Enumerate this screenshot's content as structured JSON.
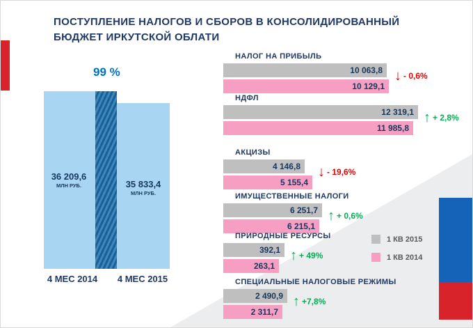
{
  "title": {
    "line1": "ПОСТУПЛЕНИЕ НАЛОГОВ И СБОРОВ В КОНСОЛИДИРОВАННЫЙ",
    "line2": "БЮДЖЕТ ИРКУТСКОЙ ОБЛАТИ"
  },
  "chart_data": [
    {
      "type": "bar",
      "annotation": "99 %",
      "categories": [
        "4 МЕС 2014",
        "4 МЕС 2015"
      ],
      "values": [
        36209.6,
        35833.4
      ],
      "value_labels": [
        "36 209,6",
        "35 833,4"
      ],
      "unit_label": "МЛН РУБ.",
      "bar_color": "#A8D6F2",
      "divider_color": "#2272A8"
    },
    {
      "type": "bar",
      "orientation": "horizontal",
      "categories": [
        "НАЛОГ НА ПРИБЫЛЬ",
        "НДФЛ",
        "АКЦИЗЫ",
        "ИМУЩЕСТВЕННЫЕ НАЛОГИ",
        "ПРИРОДНЫЕ РЕСУРСЫ",
        "СПЕЦИАЛЬНЫЕ НАЛОГОВЫЕ РЕЖИМЫ"
      ],
      "series": [
        {
          "name": "1 КВ 2015",
          "color": "#BFBFBF",
          "values": [
            10063.8,
            12319.1,
            4146.8,
            6251.7,
            392.1,
            2490.9
          ],
          "value_labels": [
            "10 063,8",
            "12 319,1",
            "4 146,8",
            "6 251,7",
            "392,1",
            "2 490,9"
          ]
        },
        {
          "name": "1 КВ 2014",
          "color": "#F79FC2",
          "values": [
            10129.1,
            11985.8,
            5155.4,
            6215.1,
            263.1,
            2311.7
          ],
          "value_labels": [
            "10 129,1",
            "11 985,8",
            "5 155,4",
            "6 215,1",
            "263,1",
            "2 311,7"
          ]
        }
      ],
      "changes": [
        {
          "text": "- 0,6%",
          "direction": "down"
        },
        {
          "text": "+ 2,8%",
          "direction": "up"
        },
        {
          "text": "- 19,6%",
          "direction": "down"
        },
        {
          "text": "+ 0,6%",
          "direction": "up"
        },
        {
          "text": "+ 49%",
          "direction": "up"
        },
        {
          "text": "+7,8%",
          "direction": "up"
        }
      ],
      "legend_position": "right",
      "up_color": "#00B050",
      "down_color": "#E60000"
    }
  ],
  "layout_hints": {
    "group_tops": [
      74,
      134,
      212,
      275,
      332,
      398
    ],
    "bar_widths_2015": [
      235,
      280,
      117,
      142,
      88,
      92
    ],
    "bar_widths_2014": [
      238,
      273,
      128,
      138,
      80,
      85
    ]
  }
}
